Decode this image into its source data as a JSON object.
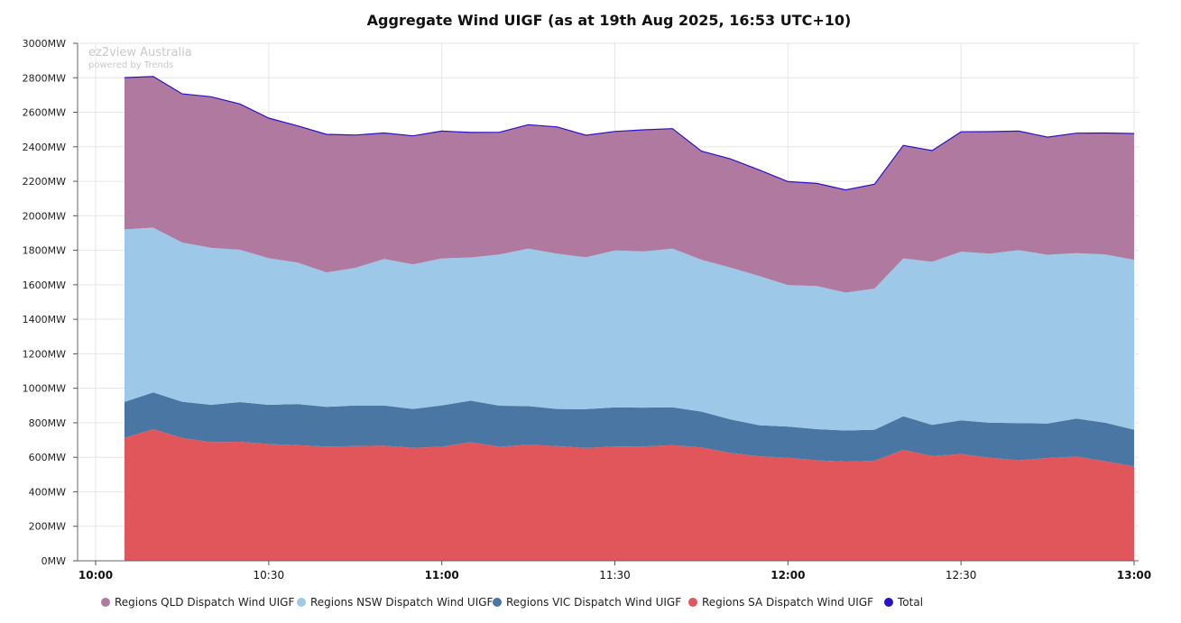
{
  "watermark": {
    "line1": "ez2view Australia",
    "line2": "powered by Trends"
  },
  "chart_data": {
    "type": "area",
    "stacked": true,
    "title": "Aggregate Wind UIGF (as at 19th Aug 2025, 16:53 UTC+10)",
    "xlabel": "",
    "ylabel": "",
    "ylim": [
      0,
      3000
    ],
    "y_ticks": [
      0,
      200,
      400,
      600,
      800,
      1000,
      1200,
      1400,
      1600,
      1800,
      2000,
      2200,
      2400,
      2600,
      2800,
      3000
    ],
    "y_tick_labels": [
      "0MW",
      "200MW",
      "400MW",
      "600MW",
      "800MW",
      "1000MW",
      "1200MW",
      "1400MW",
      "1600MW",
      "1800MW",
      "2000MW",
      "2200MW",
      "2400MW",
      "2600MW",
      "2800MW",
      "3000MW"
    ],
    "x_range": [
      "10:00",
      "13:00"
    ],
    "x_ticks": [
      {
        "label": "10:00",
        "major": true
      },
      {
        "label": "10:30",
        "major": false
      },
      {
        "label": "11:00",
        "major": true
      },
      {
        "label": "11:30",
        "major": false
      },
      {
        "label": "12:00",
        "major": true
      },
      {
        "label": "12:30",
        "major": false
      },
      {
        "label": "13:00",
        "major": true
      }
    ],
    "x": [
      "10:05",
      "10:10",
      "10:15",
      "10:20",
      "10:25",
      "10:30",
      "10:35",
      "10:40",
      "10:45",
      "10:50",
      "10:55",
      "11:00",
      "11:05",
      "11:10",
      "11:15",
      "11:20",
      "11:25",
      "11:30",
      "11:35",
      "11:40",
      "11:45",
      "11:50",
      "11:55",
      "12:00",
      "12:05",
      "12:10",
      "12:15",
      "12:20",
      "12:25",
      "12:30",
      "12:35",
      "12:40",
      "12:45",
      "12:50",
      "12:55",
      "13:00"
    ],
    "grid": true,
    "legend_position": "bottom",
    "series": [
      {
        "name": "Regions SA Dispatch Wind UIGF",
        "color": "#e0565a",
        "values": [
          713,
          763,
          712,
          688,
          690,
          677,
          670,
          662,
          665,
          668,
          655,
          661,
          688,
          661,
          672,
          665,
          654,
          662,
          663,
          670,
          657,
          625,
          606,
          598,
          583,
          575,
          580,
          643,
          608,
          619,
          598,
          583,
          596,
          604,
          577,
          547
        ]
      },
      {
        "name": "Regions VIC Dispatch Wind UIGF",
        "color": "#4a76a4",
        "values": [
          208,
          213,
          210,
          216,
          230,
          227,
          239,
          230,
          235,
          232,
          225,
          240,
          240,
          238,
          225,
          215,
          225,
          227,
          225,
          220,
          208,
          195,
          180,
          180,
          180,
          180,
          180,
          195,
          180,
          195,
          202,
          215,
          200,
          220,
          223,
          213
        ]
      },
      {
        "name": "Regions NSW Dispatch Wind UIGF",
        "color": "#9ec8e8",
        "values": [
          1000,
          955,
          923,
          910,
          883,
          850,
          820,
          780,
          798,
          850,
          838,
          852,
          830,
          877,
          913,
          900,
          880,
          910,
          905,
          920,
          880,
          880,
          865,
          820,
          830,
          800,
          818,
          915,
          945,
          978,
          980,
          1003,
          978,
          960,
          976,
          985
        ]
      },
      {
        "name": "Regions QLD Dispatch Wind UIGF",
        "color": "#b07aa0",
        "values": [
          880,
          876,
          862,
          876,
          845,
          812,
          792,
          800,
          770,
          730,
          745,
          738,
          725,
          708,
          718,
          735,
          708,
          690,
          705,
          695,
          630,
          630,
          615,
          600,
          595,
          595,
          605,
          655,
          645,
          695,
          708,
          690,
          682,
          695,
          704,
          732
        ]
      }
    ],
    "total": {
      "name": "Total",
      "color": "#2a10c8"
    }
  }
}
